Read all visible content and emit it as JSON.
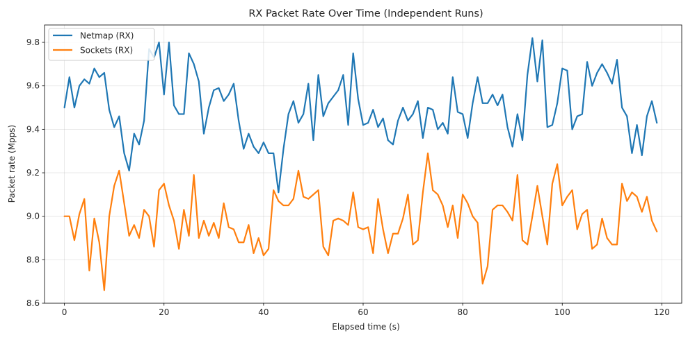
{
  "chart_data": {
    "type": "line",
    "title": "RX Packet Rate Over Time (Independent Runs)",
    "xlabel": "Elapsed time (s)",
    "ylabel": "Packet rate (Mpps)",
    "xlim": [
      -4,
      124
    ],
    "ylim": [
      8.6,
      9.88
    ],
    "x_ticks": [
      0,
      20,
      40,
      60,
      80,
      100,
      120
    ],
    "y_ticks": [
      8.6,
      8.8,
      9.0,
      9.2,
      9.4,
      9.6,
      9.8
    ],
    "grid": true,
    "legend_position": "top-left",
    "x": [
      0,
      1,
      2,
      3,
      4,
      5,
      6,
      7,
      8,
      9,
      10,
      11,
      12,
      13,
      14,
      15,
      16,
      17,
      18,
      19,
      20,
      21,
      22,
      23,
      24,
      25,
      26,
      27,
      28,
      29,
      30,
      31,
      32,
      33,
      34,
      35,
      36,
      37,
      38,
      39,
      40,
      41,
      42,
      43,
      44,
      45,
      46,
      47,
      48,
      49,
      50,
      51,
      52,
      53,
      54,
      55,
      56,
      57,
      58,
      59,
      60,
      61,
      62,
      63,
      64,
      65,
      66,
      67,
      68,
      69,
      70,
      71,
      72,
      73,
      74,
      75,
      76,
      77,
      78,
      79,
      80,
      81,
      82,
      83,
      84,
      85,
      86,
      87,
      88,
      89,
      90,
      91,
      92,
      93,
      94,
      95,
      96,
      97,
      98,
      99,
      100,
      101,
      102,
      103,
      104,
      105,
      106,
      107,
      108,
      109,
      110,
      111,
      112,
      113,
      114,
      115,
      116,
      117,
      118,
      119
    ],
    "series": [
      {
        "name": "Netmap (RX)",
        "color": "#1f77b4",
        "values": [
          9.5,
          9.64,
          9.5,
          9.6,
          9.63,
          9.61,
          9.68,
          9.64,
          9.66,
          9.49,
          9.41,
          9.46,
          9.29,
          9.21,
          9.38,
          9.33,
          9.44,
          9.77,
          9.73,
          9.8,
          9.56,
          9.8,
          9.51,
          9.47,
          9.47,
          9.75,
          9.7,
          9.62,
          9.38,
          9.5,
          9.58,
          9.59,
          9.53,
          9.56,
          9.61,
          9.44,
          9.31,
          9.38,
          9.32,
          9.29,
          9.34,
          9.29,
          9.29,
          9.11,
          9.31,
          9.47,
          9.53,
          9.43,
          9.47,
          9.61,
          9.35,
          9.65,
          9.46,
          9.52,
          9.55,
          9.58,
          9.65,
          9.42,
          9.75,
          9.54,
          9.42,
          9.43,
          9.49,
          9.41,
          9.45,
          9.35,
          9.33,
          9.44,
          9.5,
          9.44,
          9.47,
          9.53,
          9.36,
          9.5,
          9.49,
          9.4,
          9.43,
          9.38,
          9.64,
          9.48,
          9.47,
          9.36,
          9.52,
          9.64,
          9.52,
          9.52,
          9.56,
          9.51,
          9.56,
          9.41,
          9.32,
          9.47,
          9.35,
          9.65,
          9.82,
          9.62,
          9.81,
          9.41,
          9.42,
          9.52,
          9.68,
          9.67,
          9.4,
          9.46,
          9.47,
          9.71,
          9.6,
          9.66,
          9.7,
          9.66,
          9.61,
          9.72,
          9.5,
          9.46,
          9.29,
          9.42,
          9.28,
          9.46,
          9.53,
          9.43
        ]
      },
      {
        "name": "Sockets (RX)",
        "color": "#ff7f0e",
        "values": [
          9.0,
          9.0,
          8.89,
          9.01,
          9.08,
          8.75,
          8.99,
          8.88,
          8.66,
          9.0,
          9.14,
          9.21,
          9.06,
          8.91,
          8.96,
          8.9,
          9.03,
          9.0,
          8.86,
          9.12,
          9.15,
          9.05,
          8.98,
          8.85,
          9.03,
          8.91,
          9.19,
          8.9,
          8.98,
          8.91,
          8.97,
          8.9,
          9.06,
          8.95,
          8.94,
          8.88,
          8.88,
          8.96,
          8.83,
          8.9,
          8.82,
          8.85,
          9.12,
          9.07,
          9.05,
          9.05,
          9.08,
          9.21,
          9.09,
          9.08,
          9.1,
          9.12,
          8.86,
          8.82,
          8.98,
          8.99,
          8.98,
          8.96,
          9.11,
          8.95,
          8.94,
          8.95,
          8.83,
          9.08,
          8.94,
          8.83,
          8.92,
          8.92,
          8.99,
          9.1,
          8.87,
          8.89,
          9.11,
          9.29,
          9.12,
          9.1,
          9.05,
          8.95,
          9.05,
          8.9,
          9.1,
          9.06,
          9.0,
          8.97,
          8.69,
          8.77,
          9.03,
          9.05,
          9.05,
          9.02,
          8.98,
          9.19,
          8.89,
          8.87,
          9.0,
          9.14,
          9.0,
          8.87,
          9.15,
          9.24,
          9.05,
          9.09,
          9.12,
          8.94,
          9.01,
          9.03,
          8.85,
          8.87,
          8.99,
          8.9,
          8.87,
          8.87,
          9.15,
          9.07,
          9.11,
          9.09,
          9.02,
          9.09,
          8.98,
          8.93
        ]
      }
    ]
  }
}
